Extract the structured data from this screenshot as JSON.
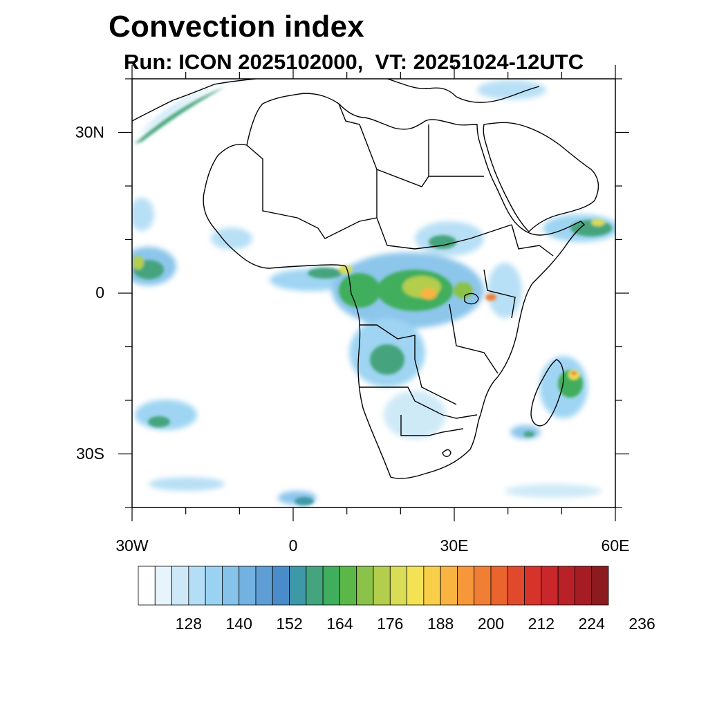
{
  "title": "Convection index",
  "subtitle": "Run: ICON 2025102000,  VT: 20251024-12UTC",
  "map": {
    "lon_range": [
      -30,
      60
    ],
    "lat_range": [
      -40,
      40
    ],
    "lat_labels": [
      {
        "lat": 30,
        "text": "30N"
      },
      {
        "lat": 0,
        "text": "0"
      },
      {
        "lat": -30,
        "text": "30S"
      }
    ],
    "lon_labels": [
      {
        "lon": -30,
        "text": "30W"
      },
      {
        "lon": 0,
        "text": "0"
      },
      {
        "lon": 30,
        "text": "30E"
      },
      {
        "lon": 60,
        "text": "60E"
      }
    ]
  },
  "colorbar": {
    "colors": [
      "#ffffff",
      "#e8f4fb",
      "#cde9f7",
      "#b4def5",
      "#9ad3f2",
      "#86c3ea",
      "#72b1e0",
      "#5e9ed5",
      "#4a8cca",
      "#3d98a7",
      "#44a47e",
      "#3fae5d",
      "#5bb848",
      "#8ac24a",
      "#b3ce4d",
      "#d9dc55",
      "#f3e254",
      "#f9cf4a",
      "#f8b340",
      "#f6983a",
      "#f07e34",
      "#ea642e",
      "#e0492b",
      "#d6342b",
      "#c9272b",
      "#b82128",
      "#a51c24",
      "#8c1a1e"
    ],
    "labels": [
      "128",
      "140",
      "152",
      "164",
      "176",
      "188",
      "200",
      "212",
      "224",
      "236"
    ]
  }
}
